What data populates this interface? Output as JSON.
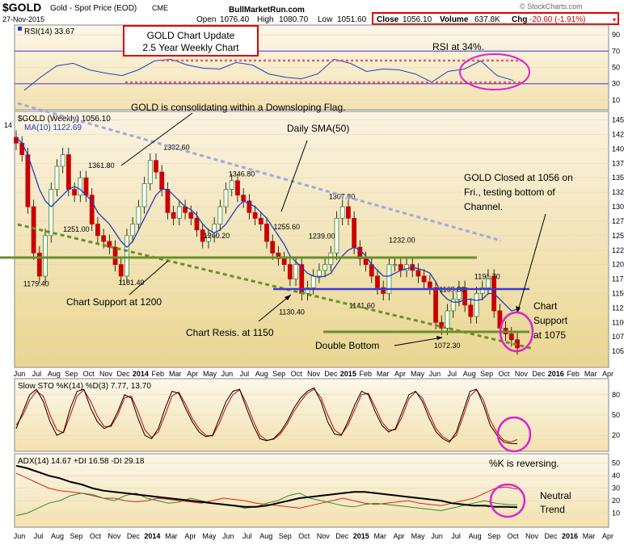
{
  "header": {
    "symbol": "$GOLD",
    "name": "Gold - Spot Price (EOD)",
    "exchange": "CME",
    "date": "27-Nov-2015",
    "site": "BullMarketRun.com",
    "open_label": "Open",
    "open": "1076.40",
    "high_label": "High",
    "high": "1080.70",
    "low_label": "Low",
    "low": "1051.60",
    "close_label": "Close",
    "close": "1056.10",
    "volume_label": "Volume",
    "volume": "637.8K",
    "chg_label": "Chg",
    "chg": "-20.60 (-1.91%)",
    "brand": "© StockCharts.com"
  },
  "colors": {
    "panel_bg_top": "#fbf3e2",
    "panel_bg_bottom": "#ecd893",
    "candle_up": "#2e8b2e",
    "candle_down": "#cc0000",
    "ma_line": "#1f3fc0",
    "flag_line": "#a0a8e0",
    "support_green": "#6a8f2a",
    "resistance_blue": "#3b3bd8",
    "annotation_pink": "#e020d0",
    "red_box": "#e00000"
  },
  "annotations": {
    "title_box_line1": "GOLD Chart Update",
    "title_box_line2": "2.5 Year Weekly Chart",
    "rsi_note": "RSI at 34%.",
    "flag_note": "GOLD is consolidating within a Downsloping Flag.",
    "sma_note": "Daily SMA(50)",
    "close_note_1": "GOLD Closed at 1056 on",
    "close_note_2": "Fri., testing bottom of",
    "close_note_3": "Channel.",
    "support_1200": "Chart Support at 1200",
    "resis_1150": "Chart Resis. at 1150",
    "double_bottom": "Double Bottom",
    "support_1075_1": "Chart",
    "support_1075_2": "Support",
    "support_1075_3": "at 1075",
    "k_reversing": "%K is reversing.",
    "neutral_1": "Neutral",
    "neutral_2": "Trend"
  },
  "price_labels": [
    "1361.80",
    "1392.60",
    "1346.80",
    "1307.80",
    "1255.60",
    "1239.00",
    "1232.00",
    "1251.00",
    "1240.20",
    "1181.40",
    "1179.40",
    "1130.40",
    "1141.60",
    "1169.80",
    "1191.70",
    "1072.30",
    "1122.69"
  ],
  "chart_data": [
    {
      "type": "line",
      "panel": "rsi",
      "legend": "RSI(14) 33.67",
      "ylim": [
        0,
        100
      ],
      "yticks": [
        10,
        30,
        50,
        70,
        90
      ],
      "levels": [
        30,
        70
      ],
      "series": [
        {
          "name": "RSI(14)",
          "x": [
            "2013-06",
            "2013-07",
            "2013-08",
            "2013-09",
            "2013-10",
            "2013-11",
            "2013-12",
            "2014-01",
            "2014-02",
            "2014-03",
            "2014-04",
            "2014-05",
            "2014-06",
            "2014-07",
            "2014-08",
            "2014-09",
            "2014-10",
            "2014-11",
            "2014-12",
            "2015-01",
            "2015-02",
            "2015-03",
            "2015-04",
            "2015-05",
            "2015-06",
            "2015-07",
            "2015-08",
            "2015-09",
            "2015-10",
            "2015-11",
            "2015-11-27"
          ],
          "values": [
            22,
            38,
            52,
            55,
            47,
            43,
            40,
            47,
            58,
            60,
            53,
            49,
            48,
            56,
            53,
            42,
            38,
            36,
            42,
            60,
            55,
            45,
            48,
            47,
            42,
            32,
            45,
            48,
            58,
            40,
            34
          ]
        }
      ]
    },
    {
      "type": "candlestick",
      "panel": "price",
      "title": "$GOLD (Weekly) 1056.10",
      "legend": [
        "$GOLD (Weekly) 1056.10",
        "MA(10) 1122.69"
      ],
      "ylim": [
        1025,
        1462
      ],
      "yticks": [
        1050,
        1075,
        1100,
        1125,
        1150,
        1175,
        1200,
        1225,
        1250,
        1275,
        1300,
        1325,
        1350,
        1375,
        1400,
        1425,
        1450
      ],
      "x_tick_labels": [
        "Jun",
        "Jul",
        "Aug",
        "Sep",
        "Oct",
        "Nov",
        "Dec",
        "2014",
        "Feb",
        "Mar",
        "Apr",
        "May",
        "Jun",
        "Jul",
        "Aug",
        "Sep",
        "Oct",
        "Nov",
        "Dec",
        "2015",
        "Feb",
        "Mar",
        "Apr",
        "May",
        "Jun",
        "Jul",
        "Aug",
        "Sep",
        "Oct",
        "Nov",
        "Dec",
        "2016",
        "Feb",
        "Mar",
        "Apr"
      ],
      "ohlc_close": [
        1410,
        1390,
        1300,
        1220,
        1180,
        1250,
        1330,
        1370,
        1390,
        1330,
        1320,
        1350,
        1320,
        1270,
        1250,
        1240,
        1230,
        1200,
        1180,
        1250,
        1270,
        1300,
        1340,
        1380,
        1360,
        1330,
        1290,
        1280,
        1300,
        1290,
        1280,
        1260,
        1240,
        1250,
        1270,
        1300,
        1330,
        1345,
        1320,
        1310,
        1290,
        1280,
        1270,
        1240,
        1220,
        1210,
        1200,
        1175,
        1200,
        1150,
        1160,
        1180,
        1190,
        1200,
        1220,
        1280,
        1300,
        1280,
        1230,
        1210,
        1200,
        1180,
        1160,
        1150,
        1200,
        1200,
        1190,
        1200,
        1190,
        1180,
        1170,
        1160,
        1100,
        1090,
        1120,
        1140,
        1160,
        1130,
        1110,
        1150,
        1160,
        1180,
        1120,
        1090,
        1080,
        1070,
        1056
      ],
      "ma10": [
        1420,
        1410,
        1390,
        1360,
        1330,
        1310,
        1300,
        1310,
        1320,
        1330,
        1335,
        1330,
        1320,
        1310,
        1290,
        1280,
        1270,
        1255,
        1240,
        1230,
        1240,
        1260,
        1280,
        1300,
        1320,
        1330,
        1330,
        1320,
        1310,
        1300,
        1295,
        1285,
        1270,
        1260,
        1255,
        1260,
        1270,
        1285,
        1300,
        1310,
        1305,
        1300,
        1290,
        1280,
        1265,
        1250,
        1235,
        1215,
        1205,
        1195,
        1185,
        1180,
        1178,
        1180,
        1185,
        1200,
        1215,
        1225,
        1230,
        1225,
        1215,
        1200,
        1190,
        1180,
        1180,
        1185,
        1190,
        1193,
        1195,
        1193,
        1190,
        1185,
        1170,
        1150,
        1140,
        1135,
        1135,
        1140,
        1140,
        1138,
        1140,
        1150,
        1150,
        1140,
        1130,
        1120,
        1122.69
      ],
      "annotated_points": [
        {
          "label": "1361.80",
          "value": 1361.8
        },
        {
          "label": "1392.60",
          "value": 1392.6
        },
        {
          "label": "1346.80",
          "value": 1346.8
        },
        {
          "label": "1307.80",
          "value": 1307.8
        },
        {
          "label": "1255.60",
          "value": 1255.6
        },
        {
          "label": "1239.00",
          "value": 1239.0
        },
        {
          "label": "1232.00",
          "value": 1232.0
        },
        {
          "label": "1251.00",
          "value": 1251.0
        },
        {
          "label": "1240.20",
          "value": 1240.2
        },
        {
          "label": "1181.40",
          "value": 1181.4
        },
        {
          "label": "1179.40",
          "value": 1179.4
        },
        {
          "label": "1130.40",
          "value": 1130.4
        },
        {
          "label": "1141.60",
          "value": 1141.6
        },
        {
          "label": "1169.80",
          "value": 1169.8
        },
        {
          "label": "1191.70",
          "value": 1191.7
        },
        {
          "label": "1072.30",
          "value": 1072.3
        }
      ],
      "horizontal_levels": [
        1200,
        1150,
        1075
      ]
    },
    {
      "type": "line",
      "panel": "stochastic",
      "legend": "Slow STO %K(14) %D(3) 7.77, 13.70",
      "ylim": [
        0,
        100
      ],
      "yticks": [
        20,
        50,
        80
      ],
      "series": [
        {
          "name": "%K(14)",
          "values": [
            30,
            55,
            80,
            88,
            70,
            40,
            20,
            25,
            60,
            85,
            88,
            60,
            40,
            30,
            35,
            55,
            80,
            75,
            45,
            20,
            15,
            30,
            60,
            85,
            82,
            60,
            40,
            25,
            18,
            20,
            45,
            70,
            85,
            88,
            60,
            35,
            15,
            12,
            15,
            25,
            40,
            60,
            75,
            85,
            90,
            70,
            40,
            22,
            20,
            40,
            65,
            85,
            80,
            55,
            35,
            25,
            30,
            55,
            80,
            85,
            70,
            45,
            25,
            15,
            10,
            25,
            55,
            85,
            88,
            65,
            35,
            20,
            10,
            8,
            7.77
          ]
        },
        {
          "name": "%D(3)",
          "values": [
            35,
            50,
            72,
            85,
            78,
            50,
            28,
            24,
            50,
            78,
            87,
            70,
            48,
            33,
            33,
            50,
            75,
            78,
            55,
            28,
            17,
            25,
            50,
            78,
            84,
            66,
            45,
            30,
            20,
            19,
            38,
            62,
            80,
            87,
            67,
            42,
            20,
            13,
            14,
            22,
            36,
            55,
            70,
            82,
            88,
            76,
            50,
            28,
            21,
            35,
            58,
            80,
            82,
            62,
            40,
            28,
            28,
            48,
            74,
            84,
            75,
            52,
            30,
            18,
            12,
            20,
            48,
            78,
            87,
            72,
            42,
            24,
            13,
            10,
            13.7
          ]
        }
      ]
    },
    {
      "type": "line",
      "panel": "adx",
      "legend": "ADX(14) 14.67 +DI 16.58 -DI 29.18",
      "ylim": [
        0,
        55
      ],
      "yticks": [
        10,
        20,
        30,
        40,
        50
      ],
      "series": [
        {
          "name": "ADX(14)",
          "values": [
            48,
            46,
            43,
            40,
            38,
            35,
            33,
            30,
            28,
            27,
            26,
            25,
            24,
            23,
            22,
            21,
            20,
            19,
            18,
            17,
            16,
            15,
            15,
            16,
            18,
            20,
            22,
            23,
            24,
            25,
            26,
            27,
            27,
            26,
            25,
            24,
            23,
            22,
            21,
            20,
            18,
            17,
            16,
            16,
            15,
            15,
            14.67
          ]
        },
        {
          "name": "+DI",
          "values": [
            8,
            10,
            14,
            18,
            20,
            24,
            26,
            25,
            22,
            20,
            24,
            26,
            22,
            20,
            18,
            19,
            22,
            20,
            18,
            17,
            16,
            14,
            15,
            18,
            20,
            24,
            26,
            22,
            20,
            18,
            16,
            15,
            17,
            18,
            17,
            16,
            15,
            14,
            13,
            12,
            14,
            16,
            18,
            20,
            18,
            17,
            16.58
          ]
        },
        {
          "name": "-DI",
          "values": [
            42,
            38,
            34,
            30,
            28,
            27,
            26,
            24,
            22,
            22,
            20,
            19,
            20,
            22,
            21,
            20,
            19,
            18,
            20,
            22,
            21,
            20,
            18,
            17,
            16,
            15,
            14,
            16,
            18,
            20,
            22,
            20,
            18,
            17,
            18,
            19,
            20,
            18,
            17,
            16,
            18,
            20,
            22,
            26,
            30,
            31,
            29.18
          ]
        }
      ]
    }
  ],
  "x_axis_bottom": [
    "Jun",
    "Jul",
    "Aug",
    "Sep",
    "Oct",
    "Nov",
    "Dec",
    "2014",
    "Mar",
    "Apr",
    "May",
    "Jun",
    "Jul",
    "Aug",
    "Sep",
    "Oct",
    "Nov",
    "Dec",
    "2015",
    "Mar",
    "Apr",
    "May",
    "Jun",
    "Jul",
    "Aug",
    "Sep",
    "Oct",
    "Nov",
    "Dec",
    "2016",
    "Mar",
    "Apr"
  ]
}
